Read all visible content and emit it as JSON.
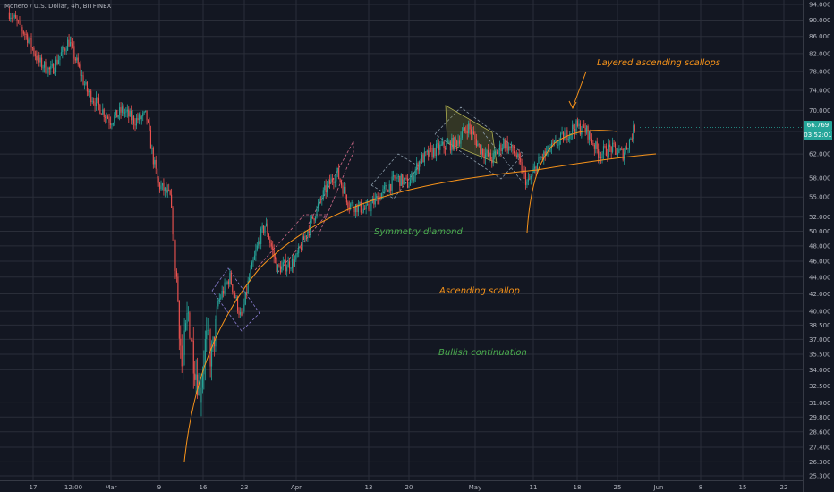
{
  "symbol_line": "Monero / U.S. Dollar, 4h, BITFINEX",
  "annotations": {
    "layered": "Layered ascending scallops",
    "diamond": "Symmetry diamond",
    "scallop": "Ascending scallop",
    "bullish": "Bullish continuation"
  },
  "price_tag": {
    "price": "66.769",
    "countdown": "03:52:01"
  },
  "colors": {
    "background": "#131722",
    "grid": "#2a2e39",
    "up": "#26a69a",
    "down": "#ef5350",
    "orange": "#f7931a",
    "green_text": "#4caf50"
  },
  "chart_data": {
    "type": "candlestick",
    "timeframe": "4h",
    "exchange": "BITFINEX",
    "y_scale": "log",
    "ylim": [
      25.3,
      94.0
    ],
    "y_ticks": [
      "94.000",
      "90.000",
      "86.000",
      "82.000",
      "78.000",
      "74.000",
      "70.000",
      "66.000",
      "62.000",
      "58.000",
      "55.000",
      "52.000",
      "50.000",
      "48.000",
      "46.000",
      "44.000",
      "42.000",
      "40.000",
      "38.500",
      "37.000",
      "35.500",
      "34.000",
      "32.500",
      "31.000",
      "29.800",
      "28.600",
      "27.400",
      "26.300",
      "25.300"
    ],
    "x_ticks": [
      "17",
      "12:00",
      "Mar",
      "9",
      "16",
      "23",
      "Apr",
      "13",
      "20",
      "May",
      "11",
      "18",
      "25",
      "Jun",
      "8",
      "15",
      "22"
    ],
    "last_price": 66.769,
    "price_path": [
      {
        "date": "2020-02-13",
        "price": 92.0
      },
      {
        "date": "2020-02-16",
        "price": 86.0
      },
      {
        "date": "2020-02-18",
        "price": 80.0
      },
      {
        "date": "2020-02-20",
        "price": 78.0
      },
      {
        "date": "2020-02-23",
        "price": 85.0
      },
      {
        "date": "2020-02-26",
        "price": 74.0
      },
      {
        "date": "2020-03-01",
        "price": 68.0
      },
      {
        "date": "2020-03-03",
        "price": 70.0
      },
      {
        "date": "2020-03-05",
        "price": 68.0
      },
      {
        "date": "2020-03-07",
        "price": 69.0
      },
      {
        "date": "2020-03-08",
        "price": 62.0
      },
      {
        "date": "2020-03-09",
        "price": 57.0
      },
      {
        "date": "2020-03-11",
        "price": 55.0
      },
      {
        "date": "2020-03-12",
        "price": 45.0
      },
      {
        "date": "2020-03-13",
        "price": 34.0
      },
      {
        "date": "2020-03-14",
        "price": 40.0
      },
      {
        "date": "2020-03-15",
        "price": 35.0
      },
      {
        "date": "2020-03-16",
        "price": 32.0
      },
      {
        "date": "2020-03-17",
        "price": 37.0
      },
      {
        "date": "2020-03-18",
        "price": 35.0
      },
      {
        "date": "2020-03-19",
        "price": 41.0
      },
      {
        "date": "2020-03-21",
        "price": 44.0
      },
      {
        "date": "2020-03-23",
        "price": 39.0
      },
      {
        "date": "2020-03-24",
        "price": 43.0
      },
      {
        "date": "2020-03-26",
        "price": 49.0
      },
      {
        "date": "2020-03-27",
        "price": 51.0
      },
      {
        "date": "2020-03-29",
        "price": 45.0
      },
      {
        "date": "2020-04-01",
        "price": 46.0
      },
      {
        "date": "2020-04-03",
        "price": 50.0
      },
      {
        "date": "2020-04-06",
        "price": 56.0
      },
      {
        "date": "2020-04-08",
        "price": 59.0
      },
      {
        "date": "2020-04-10",
        "price": 54.0
      },
      {
        "date": "2020-04-13",
        "price": 53.0
      },
      {
        "date": "2020-04-16",
        "price": 56.0
      },
      {
        "date": "2020-04-18",
        "price": 58.0
      },
      {
        "date": "2020-04-20",
        "price": 57.0
      },
      {
        "date": "2020-04-22",
        "price": 61.0
      },
      {
        "date": "2020-04-25",
        "price": 63.0
      },
      {
        "date": "2020-04-28",
        "price": 64.0
      },
      {
        "date": "2020-04-30",
        "price": 67.0
      },
      {
        "date": "2020-05-02",
        "price": 63.0
      },
      {
        "date": "2020-05-04",
        "price": 61.0
      },
      {
        "date": "2020-05-06",
        "price": 64.0
      },
      {
        "date": "2020-05-08",
        "price": 62.0
      },
      {
        "date": "2020-05-10",
        "price": 57.0
      },
      {
        "date": "2020-05-12",
        "price": 61.0
      },
      {
        "date": "2020-05-14",
        "price": 63.0
      },
      {
        "date": "2020-05-16",
        "price": 65.0
      },
      {
        "date": "2020-05-18",
        "price": 67.0
      },
      {
        "date": "2020-05-20",
        "price": 66.0
      },
      {
        "date": "2020-05-22",
        "price": 62.0
      },
      {
        "date": "2020-05-24",
        "price": 63.0
      },
      {
        "date": "2020-05-26",
        "price": 62.0
      },
      {
        "date": "2020-05-27",
        "price": 64.0
      },
      {
        "date": "2020-05-28",
        "price": 66.769
      }
    ]
  }
}
